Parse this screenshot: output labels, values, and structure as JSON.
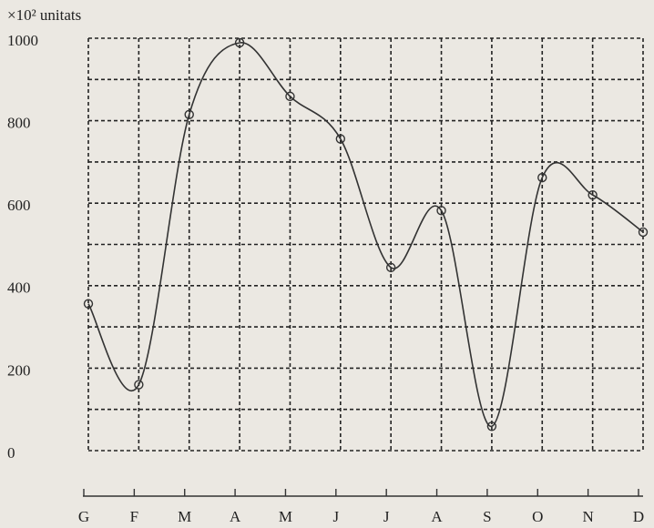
{
  "chart_data": {
    "type": "line",
    "y_label": "×10² unitats",
    "categories": [
      "G",
      "F",
      "M",
      "A",
      "M",
      "J",
      "J",
      "A",
      "S",
      "O",
      "N",
      "D"
    ],
    "series": [
      {
        "name": "unitats",
        "color": "#333333",
        "values": [
          356,
          160,
          815,
          989,
          859,
          756,
          444,
          582,
          59,
          662,
          620,
          530
        ]
      }
    ],
    "ylim": [
      0,
      1000
    ],
    "yticks": [
      0,
      200,
      400,
      600,
      800,
      1000
    ],
    "ygrid": [
      0,
      100,
      200,
      300,
      400,
      500,
      600,
      700,
      800,
      900,
      1000
    ],
    "grid": true
  }
}
